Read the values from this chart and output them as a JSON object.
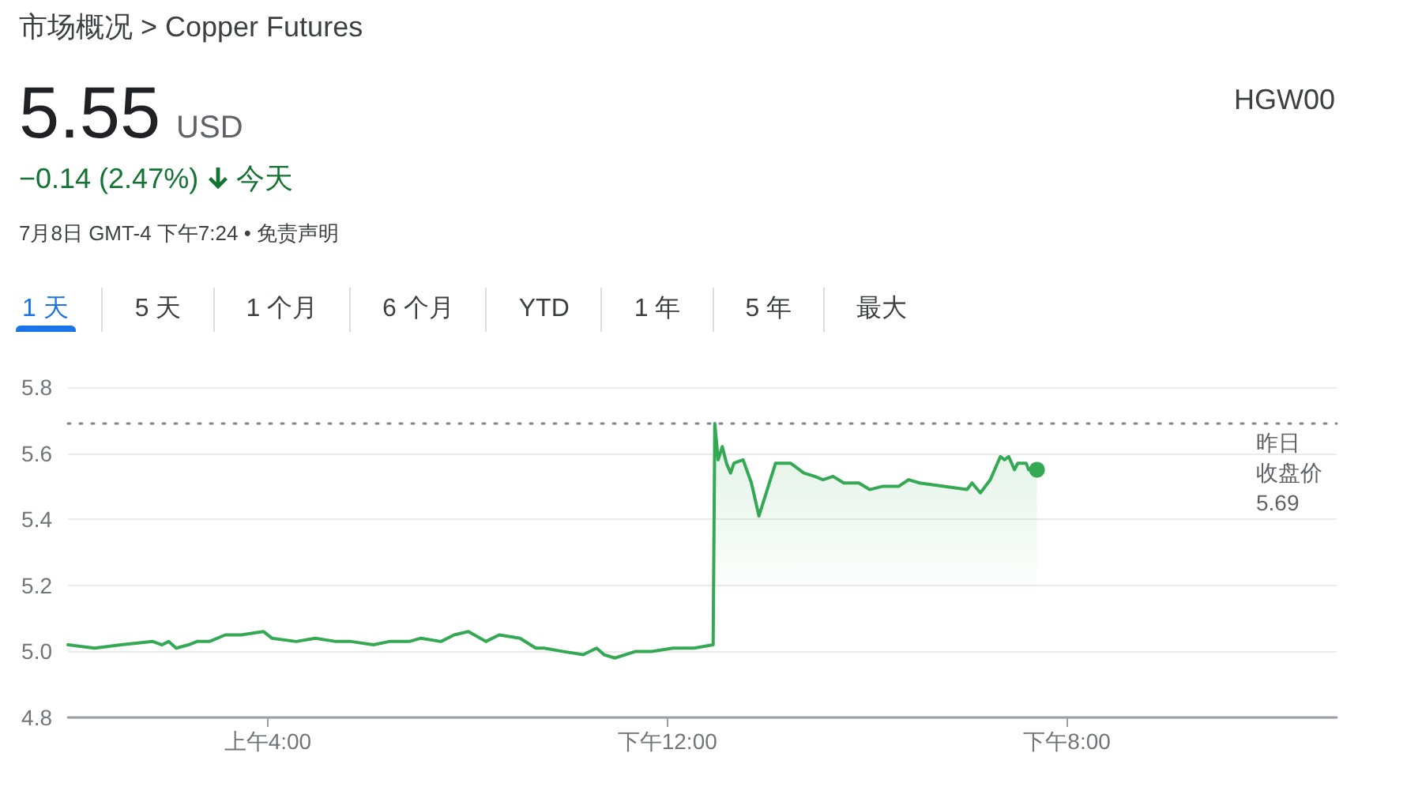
{
  "chart_data": {
    "type": "area",
    "title": "市场概况 > Copper Futures",
    "annotations": [
      "5.55",
      "USD",
      "HGW00",
      "−0.14 (2.47%)",
      "今天",
      "7月8日 GMT-4 下午7:24 • 免责声明",
      "1 天",
      "5 天",
      "1 个月",
      "6 个月",
      "YTD",
      "1 年",
      "5 年",
      "最大"
    ],
    "xlim": [
      "--07-08T00:00",
      "--07-09T01:24"
    ],
    "xticks": [
      {
        "value": "--07-08T04:00",
        "label": "上午4:00"
      },
      {
        "value": "--07-08T12:00",
        "label": "下午12:00"
      },
      {
        "value": "--07-08T20:00",
        "label": "下午8:00"
      }
    ],
    "ylim": [
      4.8,
      5.8
    ],
    "yticks": [
      4.8,
      {
        "value": 5,
        "label": "5.0"
      },
      5.2,
      5.4,
      5.6,
      5.8
    ],
    "grid": "y",
    "ref_lines": [
      {
        "axis": "y",
        "value": 5.69,
        "label": "昨日收盘价 5.69",
        "line_style": "dotted",
        "color": "#80868b"
      }
    ],
    "series": [
      {
        "type": "area",
        "color": "#34a853",
        "marker": "none",
        "x": [
          "--07-08T00:00",
          "--07-08T00:32",
          "--07-08T01:04",
          "--07-08T01:42",
          "--07-08T01:53",
          "--07-08T02:01",
          "--07-08T02:10",
          "--07-08T02:25",
          "--07-08T02:35",
          "--07-08T02:50",
          "--07-08T03:09",
          "--07-08T03:28",
          "--07-08T03:55",
          "--07-08T04:05",
          "--07-08T04:34",
          "--07-08T04:57",
          "--07-08T05:22",
          "--07-08T05:40",
          "--07-08T06:07",
          "--07-08T06:26",
          "--07-08T06:50",
          "--07-08T07:04",
          "--07-08T07:28",
          "--07-08T07:44",
          "--07-08T08:01",
          "--07-08T08:22",
          "--07-08T08:38",
          "--07-08T09:03",
          "--07-08T09:22",
          "--07-08T09:32",
          "--07-08T09:54",
          "--07-08T10:19",
          "--07-08T10:35",
          "--07-08T10:44",
          "--07-08T10:57",
          "--07-08T11:22",
          "--07-08T11:41",
          "--07-08T12:07",
          "--07-08T12:32",
          "--07-08T12:55",
          "--07-08T12:57",
          "--07-08T13:01",
          "--07-08T13:06",
          "--07-08T13:11",
          "--07-08T13:16",
          "--07-08T13:20",
          "--07-08T13:31",
          "--07-08T13:41",
          "--07-08T13:50",
          "--07-08T14:00",
          "--07-08T14:10",
          "--07-08T14:28",
          "--07-08T14:44",
          "--07-08T14:57",
          "--07-08T15:07",
          "--07-08T15:19",
          "--07-08T15:32",
          "--07-08T15:50",
          "--07-08T16:03",
          "--07-08T16:19",
          "--07-08T16:38",
          "--07-08T16:50",
          "--07-08T17:03",
          "--07-08T18:00",
          "--07-08T18:06",
          "--07-08T18:16",
          "--07-08T18:28",
          "--07-08T18:40",
          "--07-08T18:45",
          "--07-08T18:50",
          "--07-08T18:57",
          "--07-08T19:01",
          "--07-08T19:11",
          "--07-08T19:14",
          "--07-08T19:24"
        ],
        "values": [
          5.02,
          5.01,
          5.02,
          5.03,
          5.02,
          5.03,
          5.01,
          5.02,
          5.03,
          5.03,
          5.05,
          5.05,
          5.06,
          5.04,
          5.03,
          5.04,
          5.03,
          5.03,
          5.02,
          5.03,
          5.03,
          5.04,
          5.03,
          5.05,
          5.06,
          5.03,
          5.05,
          5.04,
          5.01,
          5.01,
          5.0,
          4.99,
          5.01,
          4.99,
          4.98,
          5.0,
          5.0,
          5.01,
          5.01,
          5.02,
          5.69,
          5.58,
          5.62,
          5.57,
          5.54,
          5.57,
          5.58,
          5.51,
          5.41,
          5.49,
          5.57,
          5.57,
          5.54,
          5.53,
          5.52,
          5.53,
          5.51,
          5.51,
          5.49,
          5.5,
          5.5,
          5.52,
          5.51,
          5.49,
          5.51,
          5.48,
          5.52,
          5.59,
          5.58,
          5.59,
          5.55,
          5.57,
          5.57,
          5.55,
          5.55
        ]
      },
      {
        "type": "scatter",
        "color": "#34a853",
        "marker": "circle",
        "x": [
          "--07-08T19:24"
        ],
        "values": [
          5.55
        ]
      }
    ]
  }
}
